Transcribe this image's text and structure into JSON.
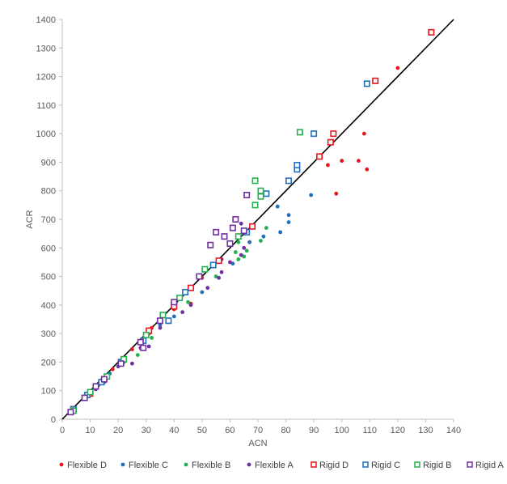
{
  "chart_data": {
    "type": "scatter",
    "title": "",
    "xlabel": "ACN",
    "ylabel": "ACR",
    "xlim": [
      0,
      140
    ],
    "ylim": [
      0,
      1400
    ],
    "xticks": [
      0,
      10,
      20,
      30,
      40,
      50,
      60,
      70,
      80,
      90,
      100,
      110,
      120,
      130,
      140
    ],
    "yticks": [
      0,
      100,
      200,
      300,
      400,
      500,
      600,
      700,
      800,
      900,
      1000,
      1100,
      1200,
      1300,
      1400
    ],
    "grid": false,
    "legend_position": "bottom",
    "reference_line": {
      "name": "y = 10x",
      "x": [
        0,
        140
      ],
      "y": [
        0,
        1400
      ],
      "color": "#000000"
    },
    "series": [
      {
        "name": "Flexible D",
        "marker": "dot",
        "color": "#e8151b",
        "points": [
          [
            4,
            35
          ],
          [
            10,
            90
          ],
          [
            14,
            130
          ],
          [
            18,
            175
          ],
          [
            22,
            210
          ],
          [
            25,
            245
          ],
          [
            31,
            300
          ],
          [
            32,
            320
          ],
          [
            40,
            385
          ],
          [
            46,
            405
          ],
          [
            50,
            495
          ],
          [
            67,
            620
          ],
          [
            95,
            890
          ],
          [
            98,
            790
          ],
          [
            100,
            905
          ],
          [
            106,
            905
          ],
          [
            108,
            1000
          ],
          [
            109,
            875
          ],
          [
            120,
            1230
          ]
        ]
      },
      {
        "name": "Flexible C",
        "marker": "dot",
        "color": "#1f6fbd",
        "points": [
          [
            4,
            35
          ],
          [
            8,
            80
          ],
          [
            13,
            120
          ],
          [
            17,
            160
          ],
          [
            21,
            200
          ],
          [
            29,
            270
          ],
          [
            35,
            330
          ],
          [
            40,
            360
          ],
          [
            50,
            445
          ],
          [
            54,
            540
          ],
          [
            61,
            545
          ],
          [
            67,
            620
          ],
          [
            72,
            640
          ],
          [
            77,
            745
          ],
          [
            78,
            655
          ],
          [
            81,
            690
          ],
          [
            81,
            715
          ],
          [
            89,
            785
          ]
        ]
      },
      {
        "name": "Flexible B",
        "marker": "dot",
        "color": "#24b04f",
        "points": [
          [
            4,
            30
          ],
          [
            10,
            95
          ],
          [
            12,
            115
          ],
          [
            15,
            140
          ],
          [
            22,
            200
          ],
          [
            27,
            225
          ],
          [
            30,
            295
          ],
          [
            32,
            285
          ],
          [
            36,
            360
          ],
          [
            45,
            410
          ],
          [
            55,
            500
          ],
          [
            62,
            585
          ],
          [
            63,
            620
          ],
          [
            63,
            560
          ],
          [
            65,
            570
          ],
          [
            66,
            590
          ],
          [
            71,
            625
          ],
          [
            73,
            670
          ]
        ]
      },
      {
        "name": "Flexible A",
        "marker": "dot",
        "color": "#7030a0",
        "points": [
          [
            4,
            30
          ],
          [
            8,
            75
          ],
          [
            12,
            105
          ],
          [
            15,
            130
          ],
          [
            20,
            185
          ],
          [
            25,
            195
          ],
          [
            28,
            250
          ],
          [
            31,
            255
          ],
          [
            35,
            320
          ],
          [
            38,
            340
          ],
          [
            43,
            375
          ],
          [
            46,
            400
          ],
          [
            52,
            460
          ],
          [
            56,
            495
          ],
          [
            57,
            515
          ],
          [
            57,
            560
          ],
          [
            60,
            550
          ],
          [
            64,
            575
          ],
          [
            64,
            685
          ],
          [
            65,
            600
          ]
        ]
      },
      {
        "name": "Rigid D",
        "marker": "square",
        "color": "#e8151b",
        "points": [
          [
            4,
            35
          ],
          [
            10,
            90
          ],
          [
            15,
            140
          ],
          [
            22,
            210
          ],
          [
            31,
            310
          ],
          [
            40,
            395
          ],
          [
            46,
            460
          ],
          [
            56,
            555
          ],
          [
            68,
            675
          ],
          [
            92,
            920
          ],
          [
            96,
            970
          ],
          [
            97,
            1000
          ],
          [
            112,
            1185
          ],
          [
            132,
            1355
          ]
        ]
      },
      {
        "name": "Rigid C",
        "marker": "square",
        "color": "#1f6fbd",
        "points": [
          [
            4,
            35
          ],
          [
            9,
            85
          ],
          [
            14,
            130
          ],
          [
            21,
            200
          ],
          [
            29,
            275
          ],
          [
            38,
            345
          ],
          [
            44,
            445
          ],
          [
            54,
            540
          ],
          [
            66,
            655
          ],
          [
            73,
            790
          ],
          [
            81,
            835
          ],
          [
            84,
            875
          ],
          [
            84,
            890
          ],
          [
            90,
            1000
          ],
          [
            109,
            1175
          ]
        ]
      },
      {
        "name": "Rigid B",
        "marker": "square",
        "color": "#24b04f",
        "points": [
          [
            4,
            30
          ],
          [
            10,
            95
          ],
          [
            16,
            150
          ],
          [
            22,
            210
          ],
          [
            30,
            295
          ],
          [
            36,
            365
          ],
          [
            42,
            425
          ],
          [
            51,
            525
          ],
          [
            63,
            640
          ],
          [
            69,
            750
          ],
          [
            69,
            835
          ],
          [
            71,
            780
          ],
          [
            71,
            800
          ],
          [
            85,
            1005
          ]
        ]
      },
      {
        "name": "Rigid A",
        "marker": "square",
        "color": "#7030a0",
        "points": [
          [
            3,
            25
          ],
          [
            8,
            75
          ],
          [
            12,
            115
          ],
          [
            15,
            140
          ],
          [
            21,
            195
          ],
          [
            28,
            270
          ],
          [
            29,
            250
          ],
          [
            35,
            345
          ],
          [
            40,
            410
          ],
          [
            49,
            500
          ],
          [
            53,
            610
          ],
          [
            55,
            655
          ],
          [
            58,
            640
          ],
          [
            60,
            615
          ],
          [
            61,
            670
          ],
          [
            62,
            700
          ],
          [
            65,
            660
          ],
          [
            66,
            785
          ]
        ]
      }
    ]
  }
}
